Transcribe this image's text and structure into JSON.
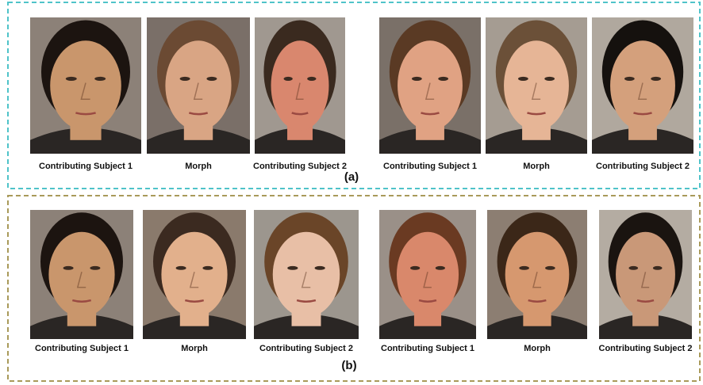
{
  "panels": [
    {
      "label": "(a)",
      "captions": [
        "Contributing Subject 1",
        "Morph",
        "Contributing Subject 2",
        "Contributing Subject 1",
        "Morph",
        "Contributing Subject 2"
      ]
    },
    {
      "label": "(b)",
      "captions": [
        "Contributing Subject 1",
        "Morph",
        "Contributing Subject 2",
        "Contributing Subject 1",
        "Morph",
        "Contributing Subject 2"
      ]
    }
  ]
}
